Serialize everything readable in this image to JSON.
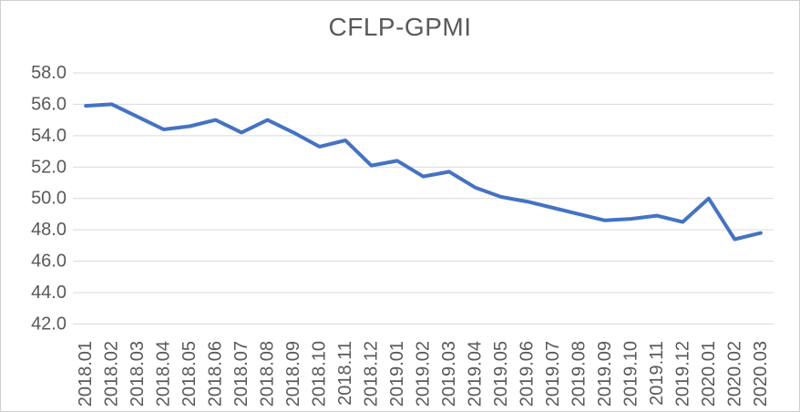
{
  "chart_data": {
    "type": "line",
    "title": "CFLP-GPMI",
    "categories": [
      "2018.01",
      "2018.02",
      "2018.03",
      "2018.04",
      "2018.05",
      "2018.06",
      "2018.07",
      "2018.08",
      "2018.09",
      "2018.10",
      "2018.11",
      "2018.12",
      "2019.01",
      "2019.02",
      "2019.03",
      "2019.04",
      "2019.05",
      "2019.06",
      "2019.07",
      "2019.08",
      "2019.09",
      "2019.10",
      "2019.11",
      "2019.12",
      "2020.01",
      "2020.02",
      "2020.03"
    ],
    "series": [
      {
        "name": "CFLP-GPMI",
        "values": [
          55.9,
          56.0,
          55.2,
          54.4,
          54.6,
          55.0,
          54.2,
          55.0,
          54.2,
          53.3,
          53.7,
          52.1,
          52.4,
          51.4,
          51.7,
          50.7,
          50.1,
          49.8,
          49.4,
          49.0,
          48.6,
          48.7,
          48.9,
          48.5,
          50.0,
          47.4,
          47.8
        ]
      }
    ],
    "xlabel": "",
    "ylabel": "",
    "ylim": [
      42.0,
      58.0
    ],
    "y_tick_step": 2.0,
    "y_tick_labels": [
      "58.0",
      "56.0",
      "54.0",
      "52.0",
      "50.0",
      "48.0",
      "46.0",
      "44.0",
      "42.0"
    ],
    "x_tick_rotation_deg": -90,
    "grid": "horizontal",
    "legend": "none",
    "colors": {
      "line": "#4472C4",
      "gridline": "#D9D9D9",
      "tick_label": "#595959",
      "title": "#595959",
      "background": "#FFFFFF",
      "frame_border": "#CFCFCF"
    }
  }
}
